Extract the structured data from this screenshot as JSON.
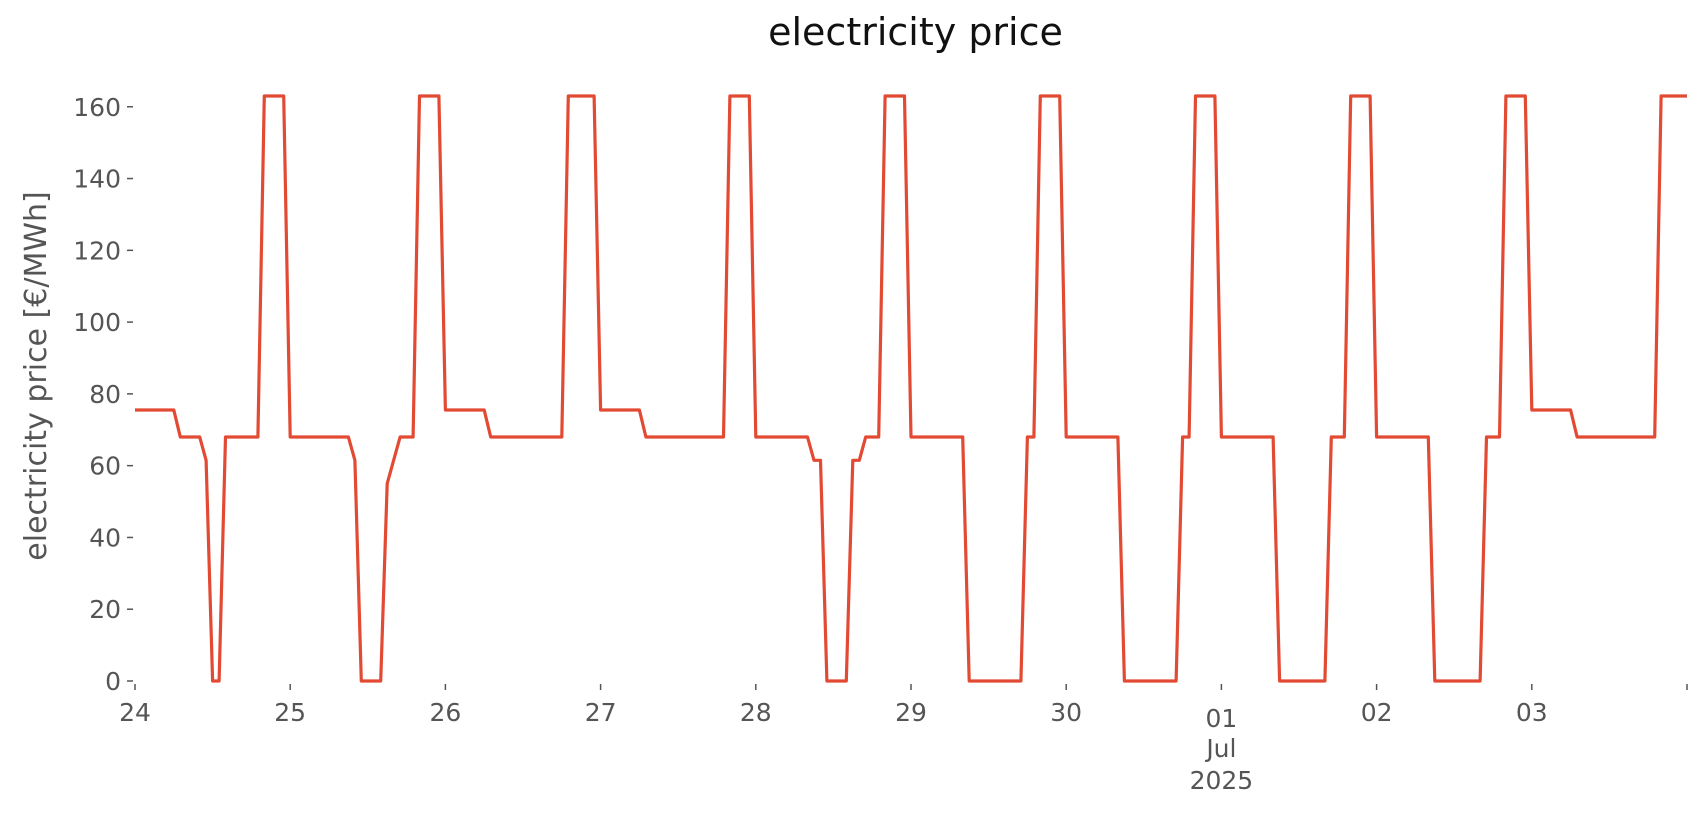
{
  "chart_data": {
    "type": "line",
    "title": "electricity price",
    "xlabel": "",
    "ylabel": "electricity price [€/MWh]",
    "ylim": [
      0,
      163
    ],
    "xlim": [
      "2025-06-24 00:00",
      "2025-07-04 00:00"
    ],
    "grid": false,
    "colors": {
      "line": "#E24A33",
      "text": "#555555",
      "title": "#111111"
    },
    "y_ticks": [
      {
        "value": 0,
        "label": "0"
      },
      {
        "value": 20,
        "label": "20"
      },
      {
        "value": 40,
        "label": "40"
      },
      {
        "value": 60,
        "label": "60"
      },
      {
        "value": 80,
        "label": "80"
      },
      {
        "value": 100,
        "label": "100"
      },
      {
        "value": 120,
        "label": "120"
      },
      {
        "value": 140,
        "label": "140"
      },
      {
        "value": 160,
        "label": "160"
      }
    ],
    "x_ticks": [
      {
        "x": "2025-06-24 00:00",
        "label": "24"
      },
      {
        "x": "2025-06-25 00:00",
        "label": "25"
      },
      {
        "x": "2025-06-26 00:00",
        "label": "26"
      },
      {
        "x": "2025-06-27 00:00",
        "label": "27"
      },
      {
        "x": "2025-06-28 00:00",
        "label": "28"
      },
      {
        "x": "2025-06-29 00:00",
        "label": "29"
      },
      {
        "x": "2025-06-30 00:00",
        "label": "30"
      },
      {
        "x": "2025-07-01 00:00",
        "label": "01",
        "sublabels": [
          "Jul",
          "2025"
        ]
      },
      {
        "x": "2025-07-02 00:00",
        "label": "02"
      },
      {
        "x": "2025-07-03 00:00",
        "label": "03"
      },
      {
        "x": "2025-07-04 00:00",
        "label": ""
      }
    ],
    "series": [
      {
        "points": [
          [
            "2025-06-24 00:00",
            75.5
          ],
          [
            "2025-06-24 06:00",
            75.5
          ],
          [
            "2025-06-24 07:00",
            68
          ],
          [
            "2025-06-24 10:00",
            68
          ],
          [
            "2025-06-24 11:00",
            61.5
          ],
          [
            "2025-06-24 12:00",
            0
          ],
          [
            "2025-06-24 13:00",
            0
          ],
          [
            "2025-06-24 14:00",
            68
          ],
          [
            "2025-06-24 19:00",
            68
          ],
          [
            "2025-06-24 20:00",
            163
          ],
          [
            "2025-06-24 23:00",
            163
          ],
          [
            "2025-06-25 00:00",
            68
          ],
          [
            "2025-06-25 09:00",
            68
          ],
          [
            "2025-06-25 10:00",
            61.5
          ],
          [
            "2025-06-25 11:00",
            0
          ],
          [
            "2025-06-25 14:00",
            0
          ],
          [
            "2025-06-25 15:00",
            55
          ],
          [
            "2025-06-25 17:00",
            68
          ],
          [
            "2025-06-25 19:00",
            68
          ],
          [
            "2025-06-25 20:00",
            163
          ],
          [
            "2025-06-25 23:00",
            163
          ],
          [
            "2025-06-26 00:00",
            75.5
          ],
          [
            "2025-06-26 06:00",
            75.5
          ],
          [
            "2025-06-26 07:00",
            68
          ],
          [
            "2025-06-26 18:00",
            68
          ],
          [
            "2025-06-26 19:00",
            163
          ],
          [
            "2025-06-26 23:00",
            163
          ],
          [
            "2025-06-27 00:00",
            75.5
          ],
          [
            "2025-06-27 06:00",
            75.5
          ],
          [
            "2025-06-27 07:00",
            68
          ],
          [
            "2025-06-27 19:00",
            68
          ],
          [
            "2025-06-27 20:00",
            163
          ],
          [
            "2025-06-27 23:00",
            163
          ],
          [
            "2025-06-28 00:00",
            68
          ],
          [
            "2025-06-28 08:00",
            68
          ],
          [
            "2025-06-28 09:00",
            61.5
          ],
          [
            "2025-06-28 10:00",
            61.5
          ],
          [
            "2025-06-28 11:00",
            0
          ],
          [
            "2025-06-28 14:00",
            0
          ],
          [
            "2025-06-28 15:00",
            61.5
          ],
          [
            "2025-06-28 16:00",
            61.5
          ],
          [
            "2025-06-28 17:00",
            68
          ],
          [
            "2025-06-28 19:00",
            68
          ],
          [
            "2025-06-28 20:00",
            163
          ],
          [
            "2025-06-28 23:00",
            163
          ],
          [
            "2025-06-29 00:00",
            68
          ],
          [
            "2025-06-29 08:00",
            68
          ],
          [
            "2025-06-29 09:00",
            0
          ],
          [
            "2025-06-29 17:00",
            0
          ],
          [
            "2025-06-29 18:00",
            68
          ],
          [
            "2025-06-29 19:00",
            68
          ],
          [
            "2025-06-29 20:00",
            163
          ],
          [
            "2025-06-29 23:00",
            163
          ],
          [
            "2025-06-30 00:00",
            68
          ],
          [
            "2025-06-30 08:00",
            68
          ],
          [
            "2025-06-30 09:00",
            0
          ],
          [
            "2025-06-30 17:00",
            0
          ],
          [
            "2025-06-30 18:00",
            68
          ],
          [
            "2025-06-30 19:00",
            68
          ],
          [
            "2025-06-30 20:00",
            163
          ],
          [
            "2025-06-30 23:00",
            163
          ],
          [
            "2025-07-01 00:00",
            68
          ],
          [
            "2025-07-01 08:00",
            68
          ],
          [
            "2025-07-01 09:00",
            0
          ],
          [
            "2025-07-01 16:00",
            0
          ],
          [
            "2025-07-01 17:00",
            68
          ],
          [
            "2025-07-01 19:00",
            68
          ],
          [
            "2025-07-01 20:00",
            163
          ],
          [
            "2025-07-01 23:00",
            163
          ],
          [
            "2025-07-02 00:00",
            68
          ],
          [
            "2025-07-02 08:00",
            68
          ],
          [
            "2025-07-02 09:00",
            0
          ],
          [
            "2025-07-02 16:00",
            0
          ],
          [
            "2025-07-02 17:00",
            68
          ],
          [
            "2025-07-02 19:00",
            68
          ],
          [
            "2025-07-02 20:00",
            163
          ],
          [
            "2025-07-02 23:00",
            163
          ],
          [
            "2025-07-03 00:00",
            75.5
          ],
          [
            "2025-07-03 06:00",
            75.5
          ],
          [
            "2025-07-03 07:00",
            68
          ],
          [
            "2025-07-03 19:00",
            68
          ],
          [
            "2025-07-03 20:00",
            163
          ],
          [
            "2025-07-04 00:00",
            163
          ]
        ]
      }
    ]
  }
}
